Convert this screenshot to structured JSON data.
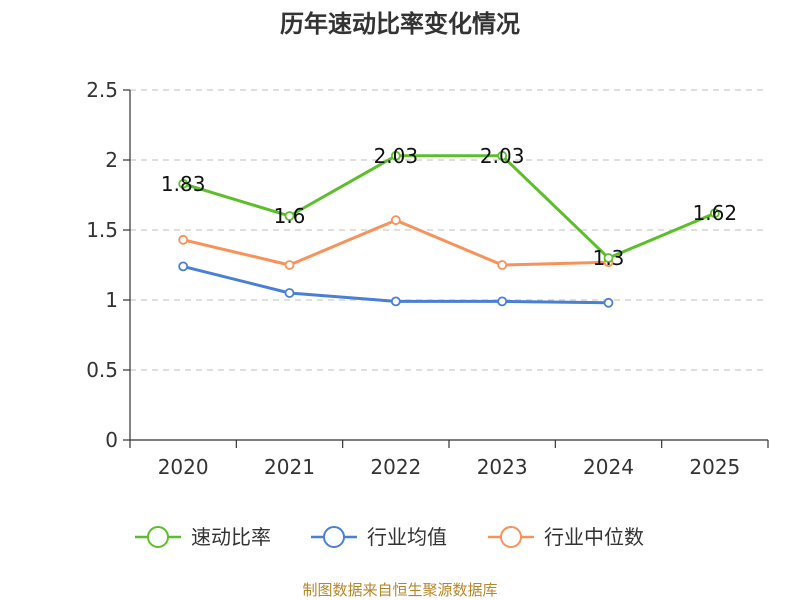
{
  "chart_data": {
    "type": "line",
    "title": "历年速动比率变化情况",
    "categories": [
      "2020",
      "2021",
      "2022",
      "2023",
      "2024",
      "2025"
    ],
    "ylim": [
      0,
      2.5
    ],
    "yticks": [
      0,
      0.5,
      1,
      1.5,
      2,
      2.5
    ],
    "grid": "horizontal-dashed",
    "legend_position": "bottom",
    "series": [
      {
        "name": "速动比率",
        "color": "#5cbf2a",
        "values": [
          1.83,
          1.6,
          2.03,
          2.03,
          1.3,
          1.62
        ],
        "labels": [
          "1.83",
          "1.6",
          "2.03",
          "2.03",
          "1.3",
          "1.62"
        ]
      },
      {
        "name": "行业均值",
        "color": "#4a7fd6",
        "values": [
          1.24,
          1.05,
          0.99,
          0.99,
          0.98,
          null
        ]
      },
      {
        "name": "行业中位数",
        "color": "#f7925a",
        "values": [
          1.43,
          1.25,
          1.57,
          1.25,
          1.27,
          null
        ]
      }
    ]
  },
  "footer": "制图数据来自恒生聚源数据库"
}
